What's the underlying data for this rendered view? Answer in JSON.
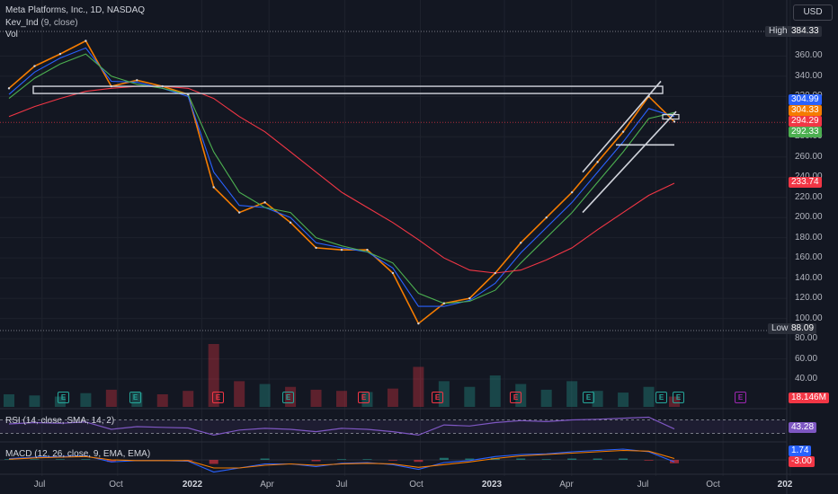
{
  "header": {
    "symbol_title": "Meta Platforms, Inc., 1D, NASDAQ",
    "indicator_label": "Kev_Ind",
    "indicator_params": "(9, close)",
    "volume_label": "Vol",
    "currency": "USD"
  },
  "rsi_label": "RSI (14, close, SMA, 14, 2)",
  "macd_label": "MACD (12, 26, close, 9, EMA, EMA)",
  "price_tags": [
    {
      "text": "304.99",
      "color": "#2962ff"
    },
    {
      "text": "304.33",
      "color": "#f57c00"
    },
    {
      "text": "294.29",
      "color": "#f23645"
    },
    {
      "text": "292.33",
      "color": "#4caf50"
    },
    {
      "text": "233.74",
      "color": "#f23645"
    },
    {
      "text": "18.146M",
      "color": "#f23645"
    },
    {
      "text": "43.28",
      "color": "#7e57c2"
    },
    {
      "text": "1.74",
      "color": "#2962ff"
    },
    {
      "text": "-3.00",
      "color": "#f23645"
    }
  ],
  "high_low": {
    "high_label": "High",
    "high_value": "384.33",
    "low_label": "Low",
    "low_value": "88.09"
  },
  "y_ticks": [
    "360.00",
    "340.00",
    "320.00",
    "280.00",
    "260.00",
    "240.00",
    "220.00",
    "200.00",
    "180.00",
    "160.00",
    "140.00",
    "120.00",
    "100.00",
    "80.00",
    "60.00",
    "40.00"
  ],
  "x_ticks": [
    {
      "label": "Jul",
      "bold": false
    },
    {
      "label": "Oct",
      "bold": false
    },
    {
      "label": "2022",
      "bold": true
    },
    {
      "label": "Apr",
      "bold": false
    },
    {
      "label": "Jul",
      "bold": false
    },
    {
      "label": "Oct",
      "bold": false
    },
    {
      "label": "2023",
      "bold": true
    },
    {
      "label": "Apr",
      "bold": false
    },
    {
      "label": "Jul",
      "bold": false
    },
    {
      "label": "Oct",
      "bold": false
    },
    {
      "label": "202",
      "bold": true
    }
  ],
  "earnings_markers": [
    {
      "letter": "E",
      "color": "#26a69a"
    },
    {
      "letter": "E",
      "color": "#26a69a"
    },
    {
      "letter": "E",
      "color": "#f23645"
    },
    {
      "letter": "E",
      "color": "#26a69a"
    },
    {
      "letter": "E",
      "color": "#f23645"
    },
    {
      "letter": "E",
      "color": "#f23645"
    },
    {
      "letter": "E",
      "color": "#f23645"
    },
    {
      "letter": "E",
      "color": "#26a69a"
    },
    {
      "letter": "E",
      "color": "#26a69a"
    },
    {
      "letter": "E",
      "color": "#26a69a"
    },
    {
      "letter": "E",
      "color": "#9c27b0"
    }
  ],
  "chart_data": {
    "type": "line",
    "title": "Meta Platforms, Inc., 1D, NASDAQ",
    "ylim": [
      80,
      390
    ],
    "scale": "linear",
    "x": [
      "2021-06",
      "2021-07",
      "2021-08",
      "2021-09",
      "2021-10",
      "2021-11",
      "2021-12",
      "2022-01",
      "2022-02",
      "2022-03",
      "2022-04",
      "2022-05",
      "2022-06",
      "2022-07",
      "2022-08",
      "2022-09",
      "2022-10",
      "2022-11",
      "2022-12",
      "2023-01",
      "2023-02",
      "2023-03",
      "2023-04",
      "2023-05",
      "2023-06",
      "2023-07",
      "2023-08"
    ],
    "series": [
      {
        "values": [
          328,
          350,
          362,
          375,
          330,
          336,
          330,
          322,
          230,
          205,
          215,
          195,
          170,
          168,
          168,
          145,
          95,
          115,
          120,
          145,
          175,
          200,
          225,
          255,
          285,
          320,
          295
        ]
      },
      {
        "values": [
          322,
          344,
          358,
          368,
          335,
          334,
          328,
          320,
          245,
          212,
          210,
          200,
          175,
          170,
          166,
          150,
          112,
          112,
          118,
          135,
          165,
          190,
          215,
          245,
          275,
          308,
          300
        ]
      },
      {
        "values": [
          318,
          338,
          352,
          362,
          340,
          332,
          328,
          322,
          265,
          225,
          210,
          205,
          180,
          172,
          166,
          155,
          125,
          115,
          117,
          128,
          155,
          180,
          205,
          235,
          265,
          298,
          304
        ]
      },
      {
        "values": [
          300,
          310,
          318,
          325,
          328,
          330,
          330,
          328,
          318,
          300,
          285,
          265,
          245,
          225,
          210,
          195,
          178,
          160,
          148,
          145,
          148,
          158,
          170,
          188,
          205,
          222,
          234
        ]
      }
    ],
    "volume": [
      22,
      20,
      18,
      24,
      30,
      25,
      22,
      28,
      110,
      45,
      40,
      35,
      30,
      28,
      26,
      32,
      70,
      45,
      35,
      55,
      40,
      30,
      45,
      28,
      25,
      35,
      18
    ],
    "rsi": [
      58,
      62,
      60,
      64,
      42,
      50,
      48,
      46,
      25,
      40,
      45,
      42,
      35,
      45,
      42,
      35,
      25,
      55,
      52,
      62,
      68,
      65,
      70,
      72,
      75,
      78,
      43
    ],
    "macd": [
      2,
      4,
      5,
      6,
      -3,
      -1,
      -1,
      -2,
      -18,
      -12,
      -6,
      -6,
      -10,
      -5,
      -4,
      -7,
      -14,
      -4,
      -1,
      5,
      8,
      9,
      12,
      14,
      16,
      12,
      -3
    ],
    "signal": [
      1,
      3,
      4,
      5,
      0,
      -1,
      -1,
      -1,
      -12,
      -12,
      -8,
      -6,
      -8,
      -6,
      -5,
      -6,
      -11,
      -7,
      -3,
      2,
      6,
      8,
      10,
      12,
      14,
      13,
      2
    ]
  }
}
